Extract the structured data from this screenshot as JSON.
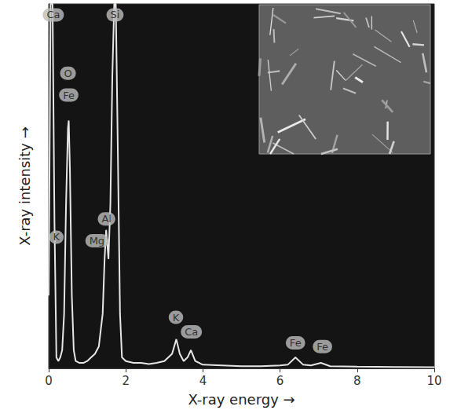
{
  "chart_data": {
    "type": "line",
    "x_label": "X-ray energy →",
    "y_label": "X-ray intensity →",
    "x": [
      0,
      0.05,
      0.1,
      0.15,
      0.2,
      0.25,
      0.3,
      0.35,
      0.4,
      0.45,
      0.5,
      0.52,
      0.55,
      0.6,
      0.65,
      0.7,
      0.8,
      0.9,
      1.0,
      1.1,
      1.2,
      1.25,
      1.3,
      1.4,
      1.45,
      1.49,
      1.55,
      1.6,
      1.65,
      1.7,
      1.74,
      1.78,
      1.85,
      1.9,
      2.0,
      2.2,
      2.4,
      2.6,
      2.8,
      3.0,
      3.2,
      3.31,
      3.4,
      3.5,
      3.6,
      3.69,
      3.8,
      4.0,
      4.5,
      5.0,
      5.5,
      6.0,
      6.2,
      6.4,
      6.6,
      6.8,
      7.06,
      7.3,
      8.0,
      9.0,
      10.0
    ],
    "values": [
      20,
      100,
      100,
      40,
      3,
      2,
      3,
      5,
      15,
      45,
      66,
      68,
      55,
      20,
      5,
      2,
      1.5,
      1.5,
      2,
      3,
      4,
      5,
      6,
      15,
      30,
      38,
      30,
      45,
      80,
      100,
      100,
      70,
      15,
      3,
      2,
      1.5,
      1.5,
      1.2,
      1.5,
      2,
      4,
      8,
      4,
      2,
      3,
      5,
      2,
      1,
      0.8,
      0.6,
      0.6,
      0.8,
      1,
      3,
      1,
      0.8,
      1.5,
      0.6,
      0.5,
      0.4,
      0.3
    ],
    "color": "#e6e6e6",
    "xlim": [
      0,
      10
    ],
    "xticks": [
      0,
      2,
      4,
      6,
      8,
      10
    ],
    "ylim": [
      0,
      100
    ],
    "tick_labels": "x",
    "grid": false,
    "annotations": [
      {
        "text": "Ca",
        "x": 0.12,
        "y": 97
      },
      {
        "text": "Si",
        "x": 1.72,
        "y": 97
      },
      {
        "text": "O",
        "x": 0.5,
        "y": 81
      },
      {
        "text": "Fe",
        "x": 0.52,
        "y": 75
      },
      {
        "text": "K",
        "x": 0.2,
        "y": 36
      },
      {
        "text": "Al",
        "x": 1.5,
        "y": 41
      },
      {
        "text": "Mg",
        "x": 1.25,
        "y": 35
      },
      {
        "text": "K",
        "x": 3.3,
        "y": 14
      },
      {
        "text": "Ca",
        "x": 3.7,
        "y": 10
      },
      {
        "text": "Fe",
        "x": 6.4,
        "y": 7
      },
      {
        "text": "Fe",
        "x": 7.1,
        "y": 6
      }
    ]
  }
}
